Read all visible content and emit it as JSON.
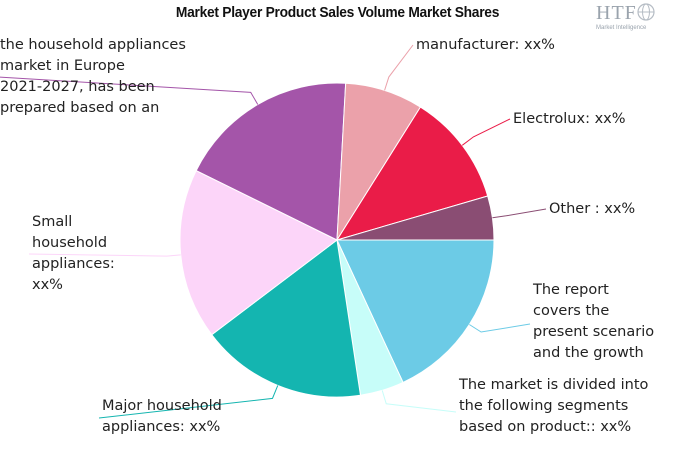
{
  "chart_data": {
    "type": "pie",
    "title": "Market Player Product Sales Volume Market Shares",
    "slices": [
      {
        "label": "The report covers the present scenario and the growth",
        "lines": [
          "The report",
          "covers the",
          "present scenario",
          "and the growth"
        ],
        "value": 18.0,
        "color": "#6ccbe6"
      },
      {
        "label": "The market is divided into the following segments based on product:: xx%",
        "lines": [
          "The market is divided into",
          "the following segments",
          "based on product:: xx%"
        ],
        "value": 4.5,
        "color": "#c7fdf9"
      },
      {
        "label": "Major household appliances: xx%",
        "lines": [
          "Major household",
          "appliances: xx%"
        ],
        "value": 17.0,
        "color": "#14b5b0"
      },
      {
        "label": "Small household appliances: xx%",
        "lines": [
          "Small",
          "household",
          "appliances:",
          "xx%"
        ],
        "value": 17.5,
        "color": "#fcd5f9"
      },
      {
        "label": "the household appliances market in Europe 2021-2027, has been prepared based on an",
        "lines": [
          "the household appliances",
          "market in Europe",
          "2021-2027, has been",
          "prepared based on an"
        ],
        "value": 18.5,
        "color": "#a455a9"
      },
      {
        "label": "manufacturer: xx%",
        "lines": [
          "manufacturer: xx%"
        ],
        "value": 8.0,
        "color": "#eba1aa"
      },
      {
        "label": "Electrolux: xx%",
        "lines": [
          "Electrolux: xx%"
        ],
        "value": 11.5,
        "color": "#ea1c48"
      },
      {
        "label": "Other : xx%",
        "lines": [
          "Other : xx%"
        ],
        "value": 4.5,
        "color": "#8a4d73"
      }
    ]
  },
  "logo": {
    "main": "HTF",
    "sub": "Market Intelligence"
  }
}
